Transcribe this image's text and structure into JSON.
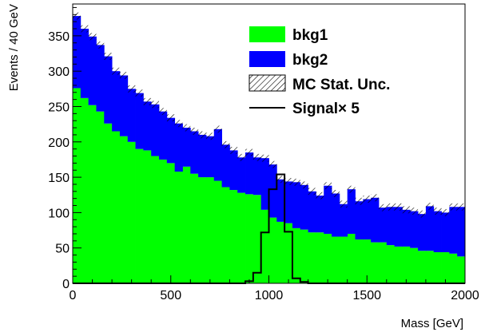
{
  "chart_data": {
    "type": "bar",
    "stacked": true,
    "xlabel": "Mass [GeV]",
    "ylabel": "Events / 40 GeV",
    "xlim": [
      0,
      2000
    ],
    "ylim": [
      0,
      395
    ],
    "bin_width": 40,
    "x_ticks": [
      0,
      500,
      1000,
      1500,
      2000
    ],
    "y_ticks": [
      0,
      50,
      100,
      150,
      200,
      250,
      300,
      350
    ],
    "bin_edges_start": [
      0,
      40,
      80,
      120,
      160,
      200,
      240,
      280,
      320,
      360,
      400,
      440,
      480,
      520,
      560,
      600,
      640,
      680,
      720,
      760,
      800,
      840,
      880,
      920,
      960,
      1000,
      1040,
      1080,
      1120,
      1160,
      1200,
      1240,
      1280,
      1320,
      1360,
      1400,
      1440,
      1480,
      1520,
      1560,
      1600,
      1640,
      1680,
      1720,
      1760,
      1800,
      1840,
      1880,
      1920,
      1960
    ],
    "series": [
      {
        "name": "bkg1",
        "color": "#00ff00",
        "values": [
          276,
          262,
          252,
          243,
          226,
          215,
          208,
          200,
          190,
          188,
          180,
          175,
          170,
          158,
          165,
          155,
          150,
          150,
          145,
          136,
          132,
          128,
          126,
          125,
          104,
          93,
          87,
          85,
          78,
          76,
          72,
          72,
          70,
          66,
          66,
          70,
          62,
          62,
          58,
          58,
          54,
          52,
          52,
          50,
          46,
          46,
          44,
          44,
          42,
          38
        ]
      },
      {
        "name": "bkg2",
        "color": "#0000ff",
        "values": [
          102,
          98,
          97,
          94,
          95,
          85,
          86,
          75,
          79,
          69,
          73,
          68,
          64,
          68,
          55,
          60,
          60,
          58,
          73,
          60,
          56,
          50,
          59,
          53,
          73,
          75,
          60,
          59,
          65,
          63,
          58,
          52,
          68,
          61,
          46,
          63,
          54,
          57,
          63,
          49,
          54,
          56,
          52,
          52,
          52,
          63,
          58,
          56,
          66,
          70
        ]
      },
      {
        "name": "Signal× 5",
        "style": "outline",
        "color": "#000000",
        "values": [
          0,
          0,
          0,
          0,
          0,
          0,
          0,
          0,
          0,
          0,
          0,
          0,
          0,
          0,
          0,
          0,
          0,
          0,
          0,
          0,
          0,
          0,
          3,
          15,
          72,
          133,
          154,
          73,
          7,
          2,
          0,
          0,
          0,
          0,
          0,
          0,
          0,
          0,
          0,
          0,
          0,
          0,
          0,
          0,
          0,
          0,
          0,
          0,
          0,
          0
        ]
      }
    ],
    "uncertainty_band": {
      "name": "MC Stat. Unc.",
      "half_width": 5
    },
    "legend": {
      "placement": "top-right",
      "entries": [
        "bkg1",
        "bkg2",
        "MC Stat. Unc.",
        "Signal× 5"
      ]
    },
    "grid": false
  }
}
